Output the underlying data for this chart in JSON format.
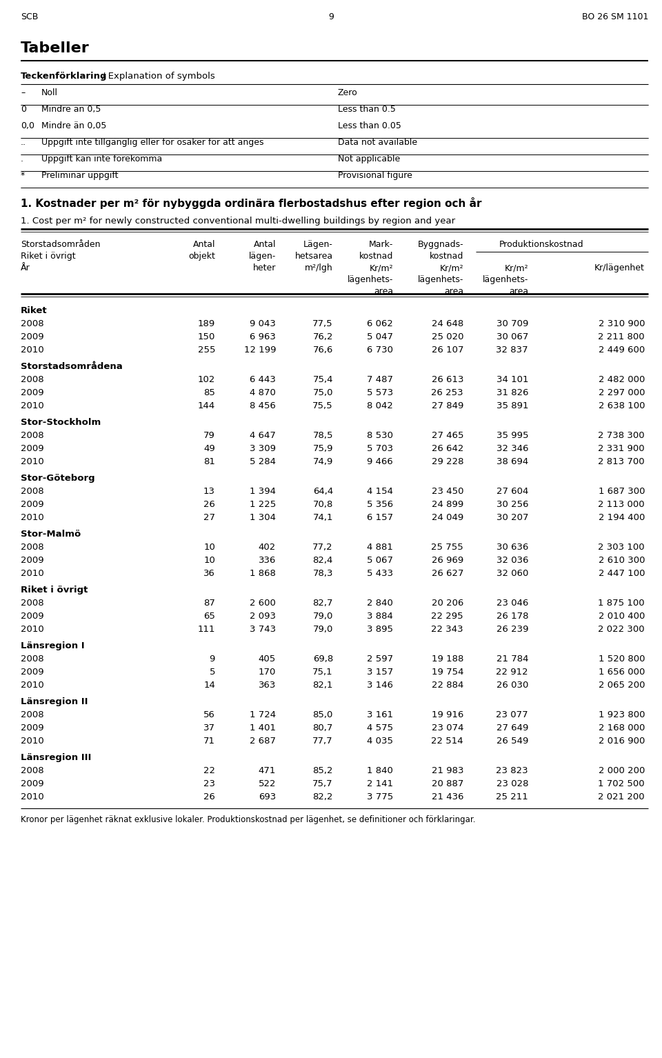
{
  "header_text": "SCB",
  "page_number": "9",
  "doc_ref": "BO 26 SM 1101",
  "section_title": "Tabeller",
  "legend_rows": [
    [
      "–",
      "Noll",
      "Zero"
    ],
    [
      "0",
      "Mindre än 0,5",
      "Less than 0.5"
    ],
    [
      "0,0",
      "Mindre än 0,05",
      "Less than 0.05"
    ],
    [
      "..",
      "Uppgift inte tillgänglig eller för osäker för att anges",
      "Data not available"
    ],
    [
      ".",
      "Uppgift kan inte förekomma",
      "Not applicable"
    ],
    [
      "*",
      "Preliminär uppgift",
      "Provisional figure"
    ]
  ],
  "table_title_sv": "1. Kostnader per m² för nybyggda ordinära flerbostadshus efter region och år",
  "table_title_en": "1. Cost per m² for newly constructed conventional multi-dwelling buildings by region and year",
  "sections": [
    {
      "name": "Riket",
      "rows": [
        [
          "2008",
          "189",
          "9 043",
          "77,5",
          "6 062",
          "24 648",
          "30 709",
          "2 310 900"
        ],
        [
          "2009",
          "150",
          "6 963",
          "76,2",
          "5 047",
          "25 020",
          "30 067",
          "2 211 800"
        ],
        [
          "2010",
          "255",
          "12 199",
          "76,6",
          "6 730",
          "26 107",
          "32 837",
          "2 449 600"
        ]
      ]
    },
    {
      "name": "Storstadsområdena",
      "rows": [
        [
          "2008",
          "102",
          "6 443",
          "75,4",
          "7 487",
          "26 613",
          "34 101",
          "2 482 000"
        ],
        [
          "2009",
          "85",
          "4 870",
          "75,0",
          "5 573",
          "26 253",
          "31 826",
          "2 297 000"
        ],
        [
          "2010",
          "144",
          "8 456",
          "75,5",
          "8 042",
          "27 849",
          "35 891",
          "2 638 100"
        ]
      ]
    },
    {
      "name": "Stor-Stockholm",
      "rows": [
        [
          "2008",
          "79",
          "4 647",
          "78,5",
          "8 530",
          "27 465",
          "35 995",
          "2 738 300"
        ],
        [
          "2009",
          "49",
          "3 309",
          "75,9",
          "5 703",
          "26 642",
          "32 346",
          "2 331 900"
        ],
        [
          "2010",
          "81",
          "5 284",
          "74,9",
          "9 466",
          "29 228",
          "38 694",
          "2 813 700"
        ]
      ]
    },
    {
      "name": "Stor-Göteborg",
      "rows": [
        [
          "2008",
          "13",
          "1 394",
          "64,4",
          "4 154",
          "23 450",
          "27 604",
          "1 687 300"
        ],
        [
          "2009",
          "26",
          "1 225",
          "70,8",
          "5 356",
          "24 899",
          "30 256",
          "2 113 000"
        ],
        [
          "2010",
          "27",
          "1 304",
          "74,1",
          "6 157",
          "24 049",
          "30 207",
          "2 194 400"
        ]
      ]
    },
    {
      "name": "Stor-Malmö",
      "rows": [
        [
          "2008",
          "10",
          "402",
          "77,2",
          "4 881",
          "25 755",
          "30 636",
          "2 303 100"
        ],
        [
          "2009",
          "10",
          "336",
          "82,4",
          "5 067",
          "26 969",
          "32 036",
          "2 610 300"
        ],
        [
          "2010",
          "36",
          "1 868",
          "78,3",
          "5 433",
          "26 627",
          "32 060",
          "2 447 100"
        ]
      ]
    },
    {
      "name": "Riket i övrigt",
      "rows": [
        [
          "2008",
          "87",
          "2 600",
          "82,7",
          "2 840",
          "20 206",
          "23 046",
          "1 875 100"
        ],
        [
          "2009",
          "65",
          "2 093",
          "79,0",
          "3 884",
          "22 295",
          "26 178",
          "2 010 400"
        ],
        [
          "2010",
          "111",
          "3 743",
          "79,0",
          "3 895",
          "22 343",
          "26 239",
          "2 022 300"
        ]
      ]
    },
    {
      "name": "Länsregion I",
      "rows": [
        [
          "2008",
          "9",
          "405",
          "69,8",
          "2 597",
          "19 188",
          "21 784",
          "1 520 800"
        ],
        [
          "2009",
          "5",
          "170",
          "75,1",
          "3 157",
          "19 754",
          "22 912",
          "1 656 000"
        ],
        [
          "2010",
          "14",
          "363",
          "82,1",
          "3 146",
          "22 884",
          "26 030",
          "2 065 200"
        ]
      ]
    },
    {
      "name": "Länsregion II",
      "rows": [
        [
          "2008",
          "56",
          "1 724",
          "85,0",
          "3 161",
          "19 916",
          "23 077",
          "1 923 800"
        ],
        [
          "2009",
          "37",
          "1 401",
          "80,7",
          "4 575",
          "23 074",
          "27 649",
          "2 168 000"
        ],
        [
          "2010",
          "71",
          "2 687",
          "77,7",
          "4 035",
          "22 514",
          "26 549",
          "2 016 900"
        ]
      ]
    },
    {
      "name": "Länsregion III",
      "rows": [
        [
          "2008",
          "22",
          "471",
          "85,2",
          "1 840",
          "21 983",
          "23 823",
          "2 000 200"
        ],
        [
          "2009",
          "23",
          "522",
          "75,7",
          "2 141",
          "20 887",
          "23 028",
          "1 702 500"
        ],
        [
          "2010",
          "26",
          "693",
          "82,2",
          "3 775",
          "21 436",
          "25 211",
          "2 021 200"
        ]
      ]
    }
  ],
  "footer": "Kronor per lägenhet räknat exklusive lokaler. Produktionskostnad per lägenhet, se definitioner och förklaringar."
}
